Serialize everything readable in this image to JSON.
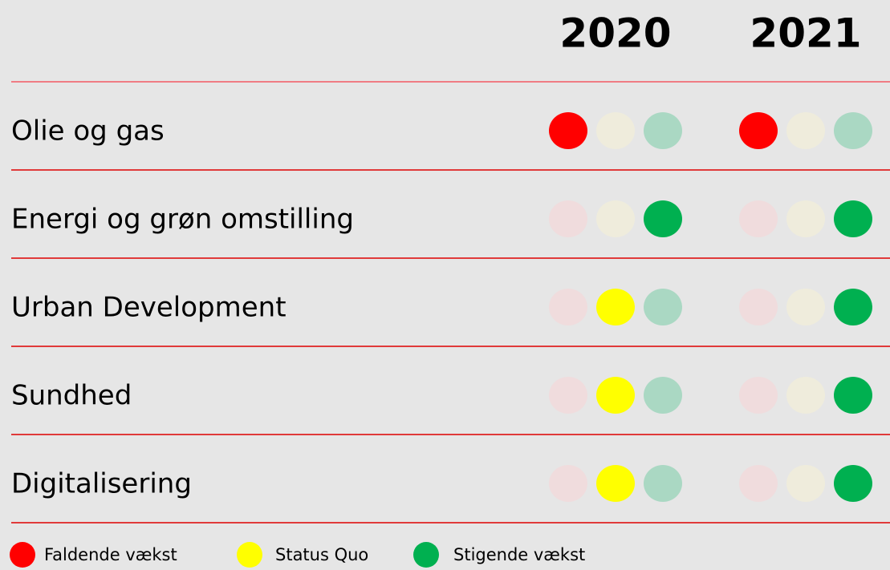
{
  "header": {
    "columns": [
      "2020",
      "2021"
    ]
  },
  "legend": [
    {
      "label": "Faldende vækst",
      "color": "#ff0000",
      "dim": "#f0dcdd"
    },
    {
      "label": "Status Quo",
      "color": "#ffff00",
      "dim": "#efecdc"
    },
    {
      "label": "Stigende vækst",
      "color": "#00b050",
      "dim": "#aad8c3"
    }
  ],
  "rows": [
    {
      "label": "Olie og gas",
      "status": [
        "Faldende vækst",
        "Faldende vækst"
      ]
    },
    {
      "label": "Energi og grøn omstilling",
      "status": [
        "Stigende vækst",
        "Stigende vækst"
      ]
    },
    {
      "label": "Urban Development",
      "status": [
        "Status Quo",
        "Stigende vækst"
      ]
    },
    {
      "label": "Sundhed",
      "status": [
        "Status Quo",
        "Stigende vækst"
      ]
    },
    {
      "label": "Digitalisering",
      "status": [
        "Status Quo",
        "Stigende vækst"
      ]
    }
  ]
}
